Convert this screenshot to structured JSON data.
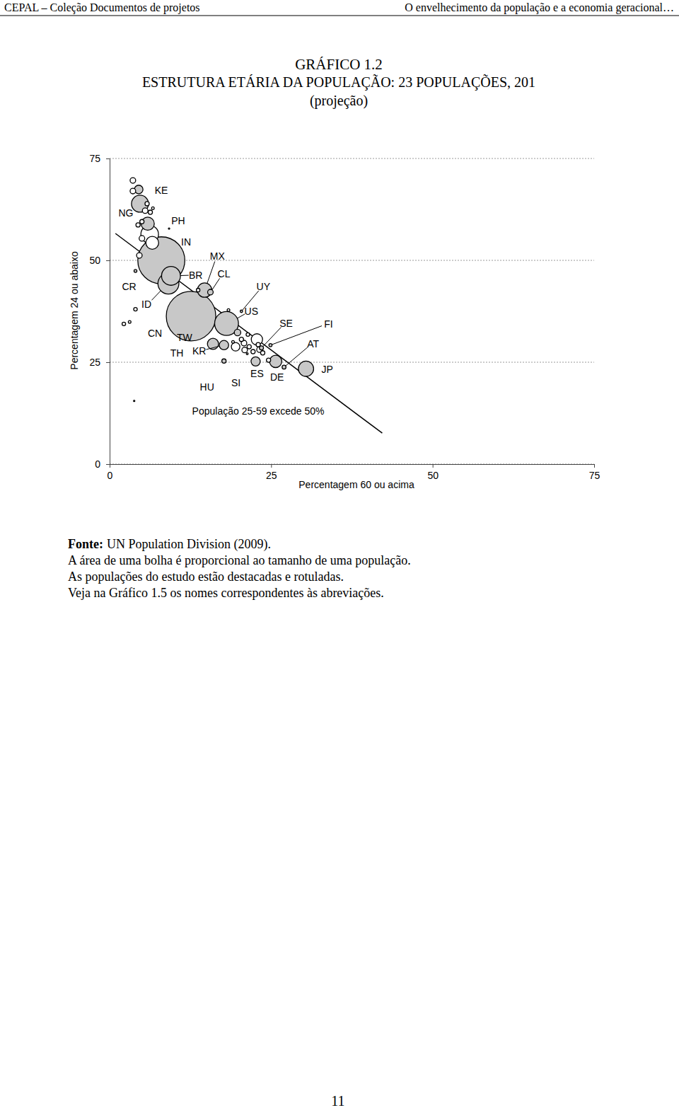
{
  "page": {
    "header_left": "CEPAL – Coleção Documentos de projetos",
    "header_right": "O envelhecimento da população e a economia geracional…",
    "source_label": "Fonte:",
    "source": "UN Population Division (2009).",
    "notes": [
      "A área de uma bolha é proporcional ao tamanho de uma população.",
      "As populações do estudo estão destacadas e rotuladas.",
      "Veja na Gráfico 1.5 os nomes correspondentes às abreviações."
    ],
    "page_number": "11"
  },
  "chart_data": {
    "type": "bubble",
    "title": "GRÁFICO 1.2",
    "subtitle": [
      "ESTRUTURA ETÁRIA DA POPULAÇÃO: 23 POPULAÇÕES, 201",
      "(projeção)"
    ],
    "x_label": "Percentagem 60 ou acima",
    "y_label": "Percentagem 24 ou abaixo",
    "xlim": [
      0,
      75
    ],
    "xticks": [
      0,
      25,
      50,
      75
    ],
    "ylim": [
      0,
      75
    ],
    "yticks": [
      0,
      25,
      50,
      75
    ],
    "grid": true,
    "color": "#c8c8c8",
    "annotation": "População 25-59 excede 50%",
    "reference_line": {
      "x": [
        0.9,
        42.2
      ],
      "values": [
        56.6,
        7.6
      ]
    },
    "labels": [
      "KE",
      "NG",
      "PH",
      "IN",
      "MX",
      "CL",
      "BR",
      "CR",
      "UY",
      "ID",
      "US",
      "SE",
      "FI",
      "CN",
      "TW",
      "AT",
      "TH",
      "KR",
      "ES",
      "DE",
      "JP",
      "HU",
      "SI",
      null,
      null,
      null,
      null,
      null,
      null,
      null,
      null,
      null,
      null,
      null,
      null,
      null,
      null,
      null,
      null,
      null,
      null,
      null,
      null,
      null,
      null,
      null,
      null,
      null,
      null,
      null,
      null,
      null,
      null,
      null,
      null
    ],
    "x": [
      4.5,
      4.7,
      5.9,
      8.0,
      14.7,
      15.6,
      9.5,
      4.0,
      20.4,
      9.1,
      18.1,
      23.5,
      24.9,
      12.6,
      19.8,
      27.0,
      16.0,
      17.7,
      22.6,
      25.7,
      30.4,
      17.7,
      21.3,
      3.6,
      3.6,
      5.5,
      6.3,
      6.7,
      4.4,
      5.0,
      5.0,
      4.6,
      9.2,
      4.0,
      2.2,
      3.1,
      3.8,
      13.7,
      18.4,
      21.4,
      19.1,
      20.8,
      22.2,
      23.2,
      23.7,
      23.0,
      24.6,
      20.4,
      22.8,
      20.9,
      21.6,
      5.8,
      6.2,
      6.6,
      19.5
    ],
    "values": [
      67.4,
      63.9,
      59.0,
      50.0,
      42.7,
      42.2,
      46.2,
      47.4,
      37.5,
      44.3,
      34.5,
      28.5,
      29.2,
      36.3,
      32.3,
      23.8,
      29.5,
      29.2,
      25.2,
      25.2,
      23.4,
      25.3,
      27.1,
      69.6,
      67.0,
      62.2,
      61.8,
      62.8,
      58.7,
      59.5,
      55.4,
      51.2,
      57.8,
      38.0,
      34.4,
      34.9,
      15.5,
      42.7,
      37.8,
      31.8,
      30.0,
      29.7,
      27.6,
      28.1,
      27.3,
      29.3,
      25.5,
      30.6,
      30.6,
      28.0,
      28.8,
      63.9,
      56.4,
      54.3,
      28.8
    ],
    "sizes": [
      40,
      158,
      94,
      1210,
      113,
      17,
      195,
      4.6,
      3.4,
      240,
      310,
      9.3,
      5.4,
      1340,
      23,
      8.4,
      68,
      48,
      46,
      82,
      127,
      10,
      2,
      17,
      17,
      17,
      10,
      4,
      10,
      10,
      17,
      17,
      1,
      7,
      7,
      4,
      1,
      7,
      4,
      7,
      4,
      17,
      10,
      17,
      10,
      10,
      10,
      10,
      70,
      17,
      10,
      10,
      170,
      90,
      40
    ]
  }
}
